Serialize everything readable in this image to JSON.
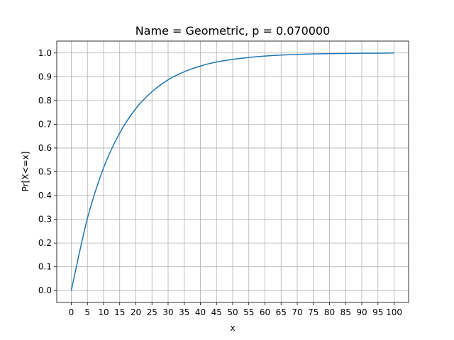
{
  "chart_data": {
    "type": "line",
    "title": "Name = Geometric, p = 0.070000",
    "xlabel": "x",
    "ylabel": "Pr[X<=x]",
    "xlim": [
      -4.5,
      104.5
    ],
    "ylim": [
      -0.05,
      1.05
    ],
    "xticks": [
      0,
      5,
      10,
      15,
      20,
      25,
      30,
      35,
      40,
      45,
      50,
      55,
      60,
      65,
      70,
      75,
      80,
      85,
      90,
      95,
      100
    ],
    "xtick_labels": [
      "0",
      "5",
      "10",
      "15",
      "20",
      "25",
      "30",
      "35",
      "40",
      "45",
      "50",
      "55",
      "60",
      "65",
      "70",
      "75",
      "80",
      "85",
      "90",
      "95",
      "100"
    ],
    "yticks": [
      0.0,
      0.1,
      0.2,
      0.3,
      0.4,
      0.5,
      0.6,
      0.7,
      0.8,
      0.9,
      1.0
    ],
    "ytick_labels": [
      "0.0",
      "0.1",
      "0.2",
      "0.3",
      "0.4",
      "0.5",
      "0.6",
      "0.7",
      "0.8",
      "0.9",
      "1.0"
    ],
    "grid": true,
    "color": "#1f77b4",
    "series": [
      {
        "x": [
          0,
          5,
          10,
          15,
          20,
          25,
          30,
          35,
          40,
          45,
          50,
          55,
          60,
          65,
          70,
          75,
          80,
          85,
          90,
          95,
          100
        ],
        "y": [
          0.0,
          0.304,
          0.516,
          0.663,
          0.766,
          0.837,
          0.887,
          0.921,
          0.945,
          0.962,
          0.973,
          0.981,
          0.987,
          0.991,
          0.994,
          0.996,
          0.997,
          0.998,
          0.999,
          0.999,
          1.0
        ]
      }
    ]
  }
}
